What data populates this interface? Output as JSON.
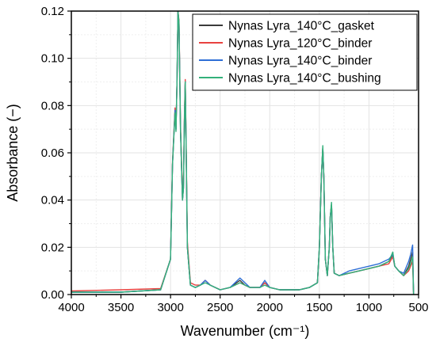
{
  "chart_data": {
    "type": "line",
    "xlabel": "Wavenumber (cm⁻¹)",
    "ylabel": "Absorbance (−)",
    "xlim": [
      4000,
      500
    ],
    "ylim": [
      0,
      0.12
    ],
    "x_reversed": true,
    "grid": true,
    "legend_position": "top-right",
    "x_ticks": [
      4000,
      3500,
      3000,
      2500,
      2000,
      1500,
      1000,
      500
    ],
    "x_tick_labels": [
      "4000",
      "3500",
      "3000",
      "2500",
      "2000",
      "1500",
      "1000",
      "500"
    ],
    "y_ticks": [
      0,
      0.02,
      0.04,
      0.06,
      0.08,
      0.1,
      0.12
    ],
    "y_tick_labels": [
      "0.00",
      "0.02",
      "0.04",
      "0.06",
      "0.08",
      "0.10",
      "0.12"
    ],
    "x": [
      4000,
      3500,
      3100,
      3000,
      2980,
      2955,
      2945,
      2935,
      2925,
      2915,
      2900,
      2880,
      2870,
      2860,
      2852,
      2845,
      2830,
      2800,
      2750,
      2700,
      2650,
      2600,
      2550,
      2500,
      2400,
      2300,
      2250,
      2200,
      2100,
      2050,
      2000,
      1900,
      1800,
      1700,
      1600,
      1520,
      1500,
      1480,
      1465,
      1455,
      1440,
      1420,
      1400,
      1390,
      1377,
      1365,
      1350,
      1300,
      1200,
      1100,
      1000,
      900,
      800,
      760,
      740,
      720,
      700,
      650,
      600,
      580,
      560,
      550
    ],
    "series": [
      {
        "name": "Nynas Lyra_140°C_gasket",
        "color": "#3a3a3a",
        "values": [
          0.001,
          0.001,
          0.002,
          0.015,
          0.055,
          0.078,
          0.07,
          0.09,
          0.12,
          0.115,
          0.07,
          0.04,
          0.045,
          0.075,
          0.09,
          0.07,
          0.02,
          0.004,
          0.003,
          0.004,
          0.006,
          0.004,
          0.003,
          0.002,
          0.003,
          0.006,
          0.004,
          0.003,
          0.003,
          0.005,
          0.003,
          0.002,
          0.002,
          0.002,
          0.003,
          0.005,
          0.02,
          0.05,
          0.062,
          0.05,
          0.015,
          0.008,
          0.02,
          0.033,
          0.038,
          0.02,
          0.009,
          0.008,
          0.009,
          0.01,
          0.011,
          0.012,
          0.014,
          0.017,
          0.012,
          0.011,
          0.01,
          0.008,
          0.012,
          0.015,
          0.018,
          0.0
        ]
      },
      {
        "name": "Nynas Lyra_120°C_binder",
        "color": "#e8423f",
        "values": [
          0.0015,
          0.002,
          0.0025,
          0.015,
          0.056,
          0.079,
          0.071,
          0.09,
          0.12,
          0.116,
          0.072,
          0.042,
          0.047,
          0.077,
          0.091,
          0.072,
          0.022,
          0.005,
          0.004,
          0.004,
          0.006,
          0.004,
          0.003,
          0.002,
          0.003,
          0.005,
          0.004,
          0.003,
          0.003,
          0.005,
          0.003,
          0.002,
          0.002,
          0.002,
          0.003,
          0.005,
          0.02,
          0.05,
          0.062,
          0.05,
          0.015,
          0.008,
          0.02,
          0.033,
          0.038,
          0.02,
          0.009,
          0.008,
          0.009,
          0.01,
          0.011,
          0.012,
          0.013,
          0.016,
          0.012,
          0.011,
          0.01,
          0.008,
          0.01,
          0.012,
          0.014,
          0.0
        ]
      },
      {
        "name": "Nynas Lyra_140°C_binder",
        "color": "#2e6fd6",
        "values": [
          0.001,
          0.001,
          0.002,
          0.015,
          0.055,
          0.078,
          0.07,
          0.09,
          0.12,
          0.115,
          0.07,
          0.04,
          0.045,
          0.075,
          0.09,
          0.07,
          0.02,
          0.004,
          0.003,
          0.004,
          0.006,
          0.004,
          0.003,
          0.002,
          0.003,
          0.007,
          0.005,
          0.003,
          0.003,
          0.006,
          0.003,
          0.002,
          0.002,
          0.002,
          0.003,
          0.005,
          0.02,
          0.05,
          0.062,
          0.05,
          0.015,
          0.008,
          0.02,
          0.033,
          0.038,
          0.02,
          0.009,
          0.008,
          0.01,
          0.011,
          0.012,
          0.013,
          0.015,
          0.017,
          0.012,
          0.011,
          0.01,
          0.009,
          0.014,
          0.017,
          0.021,
          0.0
        ]
      },
      {
        "name": "Nynas Lyra_140°C_bushing",
        "color": "#33b07a",
        "values": [
          0.001,
          0.001,
          0.002,
          0.015,
          0.055,
          0.077,
          0.069,
          0.09,
          0.12,
          0.115,
          0.07,
          0.04,
          0.045,
          0.075,
          0.09,
          0.07,
          0.02,
          0.004,
          0.003,
          0.004,
          0.005,
          0.004,
          0.003,
          0.002,
          0.003,
          0.005,
          0.004,
          0.003,
          0.003,
          0.004,
          0.003,
          0.002,
          0.002,
          0.002,
          0.003,
          0.005,
          0.02,
          0.05,
          0.063,
          0.05,
          0.015,
          0.008,
          0.02,
          0.033,
          0.039,
          0.02,
          0.009,
          0.008,
          0.009,
          0.01,
          0.011,
          0.012,
          0.014,
          0.018,
          0.012,
          0.011,
          0.01,
          0.008,
          0.011,
          0.013,
          0.016,
          0.0
        ]
      }
    ]
  }
}
